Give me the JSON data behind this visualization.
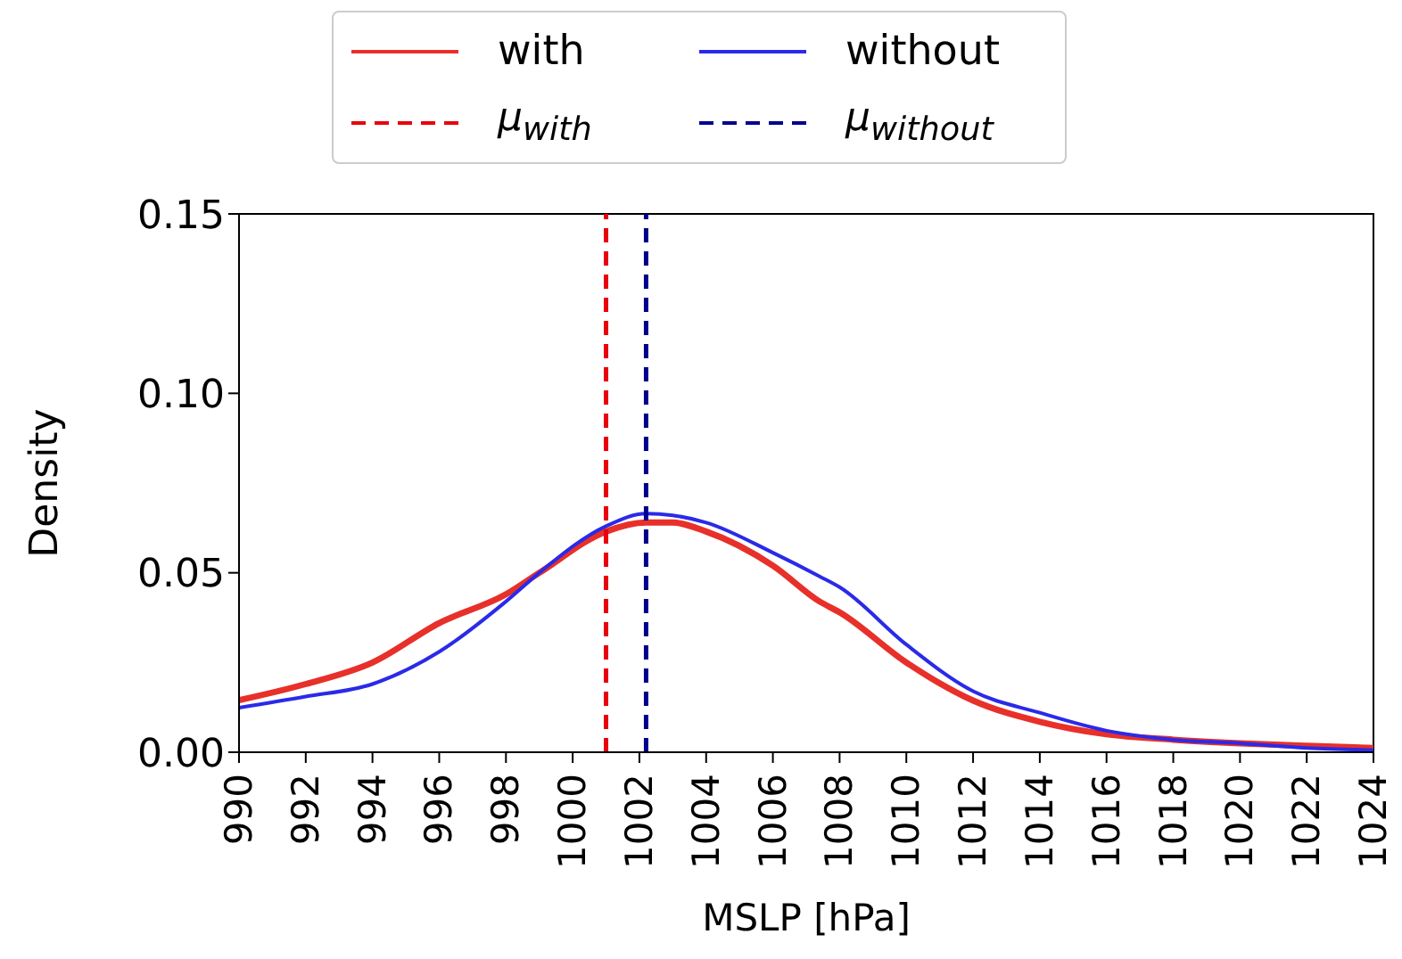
{
  "chart_data": {
    "type": "line",
    "xlabel": "MSLP [hPa]",
    "ylabel": "Density",
    "x": [
      990,
      992,
      994,
      996,
      998,
      999,
      1001,
      1002.2,
      1003,
      1004,
      1006,
      1007.4,
      1008,
      1010,
      1012,
      1014,
      1016,
      1018,
      1020,
      1022,
      1024
    ],
    "series": [
      {
        "name": "with",
        "color": "#e8302a",
        "values": [
          0.0145,
          0.019,
          0.025,
          0.036,
          0.044,
          0.05,
          0.0615,
          0.064,
          0.064,
          0.0615,
          0.052,
          0.042,
          0.039,
          0.025,
          0.0144,
          0.0085,
          0.005,
          0.0035,
          0.0025,
          0.0018,
          0.0012
        ]
      },
      {
        "name": "without",
        "color": "#2a2ae8",
        "values": [
          0.0124,
          0.0155,
          0.019,
          0.028,
          0.042,
          0.05,
          0.063,
          0.0665,
          0.066,
          0.064,
          0.0556,
          0.049,
          0.046,
          0.03,
          0.017,
          0.011,
          0.006,
          0.0035,
          0.0025,
          0.0012,
          0.0006
        ]
      }
    ],
    "ref_lines": [
      {
        "axis": "x",
        "value": 1001,
        "label": "μ$_{with}$",
        "color": "#e8000b",
        "line_style": "dashed"
      },
      {
        "axis": "x",
        "value": 1002.2,
        "label": "μ$_{without}$",
        "color": "#00008b",
        "line_style": "dashed"
      }
    ],
    "xlim": [
      990,
      1024
    ],
    "xticks": [
      990,
      992,
      994,
      996,
      998,
      1000,
      1002,
      1004,
      1006,
      1008,
      1010,
      1012,
      1014,
      1016,
      1018,
      1020,
      1022,
      1024
    ],
    "ylim": [
      0,
      0.15
    ],
    "yticks": [
      {
        "value": 0,
        "label": "0.00"
      },
      {
        "value": 0.05,
        "label": "0.05"
      },
      {
        "value": 0.1,
        "label": "0.10"
      },
      {
        "value": 0.15,
        "label": "0.15"
      }
    ],
    "grid": false,
    "legend": "top",
    "marker": "none"
  }
}
